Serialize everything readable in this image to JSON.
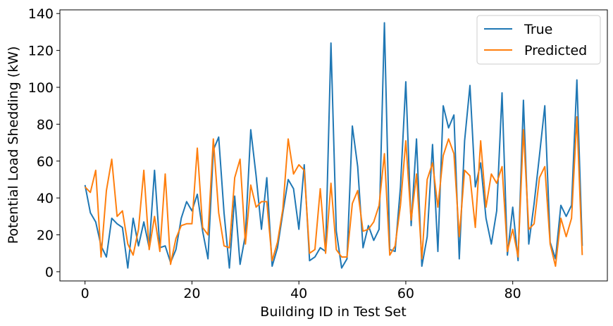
{
  "chart_data": {
    "type": "line",
    "xlabel": "Building ID in Test Set",
    "ylabel": "Potential Load Shedding (kW)",
    "xlim": [
      -4.7,
      97.7
    ],
    "ylim": [
      -5,
      142
    ],
    "xticks": [
      0,
      20,
      40,
      60,
      80
    ],
    "yticks": [
      0,
      20,
      40,
      60,
      80,
      100,
      120,
      140
    ],
    "grid": false,
    "legend_position": "top-right",
    "series": [
      {
        "name": "True",
        "color": "#1f77b4",
        "x": [
          0,
          1,
          2,
          3,
          4,
          5,
          6,
          7,
          8,
          9,
          10,
          11,
          12,
          13,
          14,
          15,
          16,
          17,
          18,
          19,
          20,
          21,
          22,
          23,
          24,
          25,
          26,
          27,
          28,
          29,
          30,
          31,
          32,
          33,
          34,
          35,
          36,
          37,
          38,
          39,
          40,
          41,
          42,
          43,
          44,
          45,
          46,
          47,
          48,
          49,
          50,
          51,
          52,
          53,
          54,
          55,
          56,
          57,
          58,
          59,
          60,
          61,
          62,
          63,
          64,
          65,
          66,
          67,
          68,
          69,
          70,
          71,
          72,
          73,
          74,
          75,
          76,
          77,
          78,
          79,
          80,
          81,
          82,
          83,
          84,
          85,
          86,
          87,
          88,
          89,
          90,
          91,
          92,
          93
        ],
        "values": [
          47,
          32,
          27,
          14,
          8,
          29,
          26,
          24,
          2,
          29,
          14,
          27,
          13,
          55,
          13,
          14,
          5,
          12,
          29,
          38,
          33,
          42,
          22,
          7,
          66,
          73,
          32,
          2,
          41,
          4,
          20,
          77,
          52,
          23,
          51,
          3,
          13,
          32,
          50,
          45,
          23,
          58,
          6,
          8,
          13,
          11,
          124,
          22,
          2,
          7,
          79,
          57,
          13,
          25,
          17,
          23,
          135,
          12,
          11,
          46,
          103,
          25,
          72,
          3,
          19,
          69,
          11,
          90,
          78,
          85,
          7,
          71,
          101,
          46,
          59,
          29,
          15,
          33,
          97,
          9,
          35,
          6,
          93,
          15,
          37,
          63,
          90,
          16,
          7,
          36,
          30,
          36,
          104,
          14
        ]
      },
      {
        "name": "Predicted",
        "color": "#ff7f0e",
        "x": [
          0,
          1,
          2,
          3,
          4,
          5,
          6,
          7,
          8,
          9,
          10,
          11,
          12,
          13,
          14,
          15,
          16,
          17,
          18,
          19,
          20,
          21,
          22,
          23,
          24,
          25,
          26,
          27,
          28,
          29,
          30,
          31,
          32,
          33,
          34,
          35,
          36,
          37,
          38,
          39,
          40,
          41,
          42,
          43,
          44,
          45,
          46,
          47,
          48,
          49,
          50,
          51,
          52,
          53,
          54,
          55,
          56,
          57,
          58,
          59,
          60,
          61,
          62,
          63,
          64,
          65,
          66,
          67,
          68,
          69,
          70,
          71,
          72,
          73,
          74,
          75,
          76,
          77,
          78,
          79,
          80,
          81,
          82,
          83,
          84,
          85,
          86,
          87,
          88,
          89,
          90,
          91,
          92,
          93
        ],
        "values": [
          46,
          43,
          55,
          8,
          44,
          61,
          30,
          33,
          15,
          9,
          23,
          55,
          12,
          30,
          11,
          53,
          4,
          18,
          25,
          26,
          26,
          67,
          24,
          20,
          72,
          32,
          14,
          13,
          51,
          61,
          15,
          47,
          35,
          38,
          38,
          6,
          16,
          34,
          72,
          53,
          58,
          55,
          10,
          12,
          45,
          10,
          48,
          12,
          8,
          8,
          37,
          44,
          22,
          23,
          27,
          36,
          64,
          9,
          14,
          36,
          71,
          28,
          53,
          7,
          50,
          59,
          35,
          63,
          72,
          64,
          19,
          55,
          52,
          24,
          71,
          35,
          53,
          48,
          57,
          11,
          23,
          8,
          77,
          23,
          26,
          51,
          57,
          15,
          3,
          29,
          19,
          29,
          84,
          9
        ]
      }
    ]
  }
}
